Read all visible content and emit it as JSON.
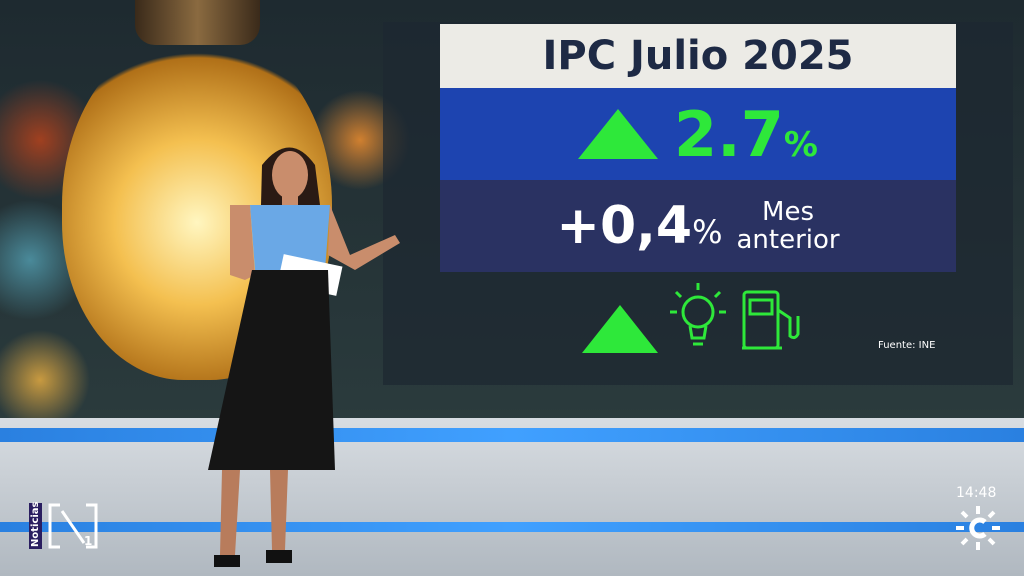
{
  "graphic": {
    "title": "IPC Julio 2025",
    "annual_value": "2.7",
    "annual_unit": "%",
    "monthly_value": "+0,4",
    "monthly_unit": "%",
    "monthly_label_1": "Mes",
    "monthly_label_2": "anterior",
    "source": "Fuente: INE",
    "icons": [
      "up-triangle-icon",
      "lightbulb-icon",
      "fuel-pump-icon"
    ]
  },
  "channel": {
    "program_label": "Noticias",
    "program_logo": "N1",
    "time": "14:48",
    "channel_logo": "Canal Sur"
  },
  "colors": {
    "accent_green": "#2ee83a",
    "band_blue": "#1d44b0",
    "band_navy": "#2a3262"
  }
}
